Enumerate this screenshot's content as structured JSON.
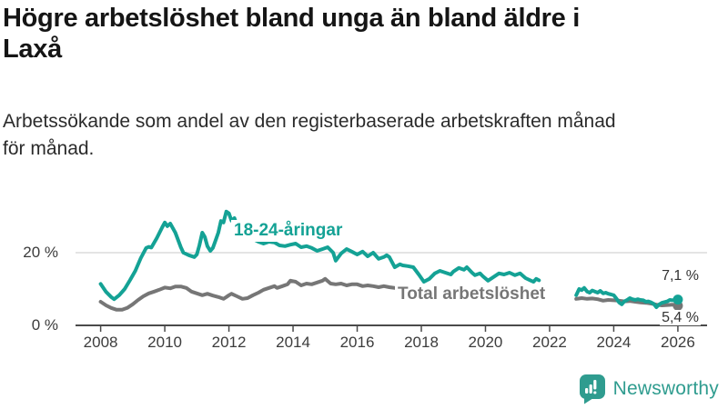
{
  "header": {
    "title_lines": [
      "Högre arbetslöshet bland unga än bland äldre i",
      "Laxå"
    ],
    "subtitle_lines": [
      "Arbetssökande som andel av den registerbaserade arbetskraften månad",
      "för månad."
    ]
  },
  "chart_data": {
    "type": "line",
    "unit": "%",
    "y_axis": {
      "tick_values": [
        20,
        0
      ],
      "tick_labels": [
        "20 %",
        "0 %"
      ],
      "gridlines": [
        20
      ],
      "range": [
        0,
        34
      ]
    },
    "x_axis": {
      "tick_values": [
        2008,
        2010,
        2012,
        2014,
        2016,
        2018,
        2020,
        2022,
        2024,
        2026
      ],
      "tick_labels": [
        "2008",
        "2010",
        "2012",
        "2014",
        "2016",
        "2018",
        "2020",
        "2022",
        "2024",
        "2026"
      ]
    },
    "data_gap": {
      "from": 2021.67,
      "to": 2022.83
    },
    "series": [
      {
        "name": "Total arbetslöshet",
        "color": "#767676",
        "end_value": 5.4,
        "end_value_label": "5,4 %",
        "segments": [
          [
            [
              2008.0,
              6.5
            ],
            [
              2008.17,
              5.5
            ],
            [
              2008.33,
              4.8
            ],
            [
              2008.5,
              4.3
            ],
            [
              2008.67,
              4.3
            ],
            [
              2008.83,
              4.8
            ],
            [
              2009.0,
              5.8
            ],
            [
              2009.17,
              7.0
            ],
            [
              2009.33,
              8.0
            ],
            [
              2009.5,
              8.8
            ],
            [
              2009.67,
              9.3
            ],
            [
              2009.83,
              9.8
            ],
            [
              2010.0,
              10.4
            ],
            [
              2010.17,
              10.2
            ],
            [
              2010.33,
              10.7
            ],
            [
              2010.5,
              10.7
            ],
            [
              2010.67,
              10.3
            ],
            [
              2010.83,
              9.3
            ],
            [
              2011.0,
              8.8
            ],
            [
              2011.17,
              8.3
            ],
            [
              2011.33,
              8.7
            ],
            [
              2011.5,
              8.2
            ],
            [
              2011.67,
              7.8
            ],
            [
              2011.83,
              7.3
            ],
            [
              2011.92,
              7.8
            ],
            [
              2012.0,
              8.3
            ],
            [
              2012.08,
              8.7
            ],
            [
              2012.25,
              8.0
            ],
            [
              2012.42,
              7.3
            ],
            [
              2012.58,
              7.5
            ],
            [
              2012.75,
              8.3
            ],
            [
              2012.92,
              9.0
            ],
            [
              2013.08,
              9.8
            ],
            [
              2013.25,
              10.3
            ],
            [
              2013.42,
              10.8
            ],
            [
              2013.5,
              10.3
            ],
            [
              2013.67,
              10.8
            ],
            [
              2013.83,
              11.3
            ],
            [
              2013.92,
              12.3
            ],
            [
              2014.08,
              12.0
            ],
            [
              2014.25,
              11.0
            ],
            [
              2014.42,
              11.5
            ],
            [
              2014.58,
              11.3
            ],
            [
              2014.75,
              11.8
            ],
            [
              2014.92,
              12.3
            ],
            [
              2015.0,
              12.8
            ],
            [
              2015.17,
              11.5
            ],
            [
              2015.33,
              11.3
            ],
            [
              2015.5,
              11.5
            ],
            [
              2015.67,
              11.0
            ],
            [
              2015.83,
              11.3
            ],
            [
              2016.0,
              11.3
            ],
            [
              2016.17,
              10.8
            ],
            [
              2016.33,
              11.0
            ],
            [
              2016.5,
              10.8
            ],
            [
              2016.67,
              10.5
            ],
            [
              2016.83,
              10.8
            ],
            [
              2017.0,
              10.5
            ],
            [
              2017.25,
              10.2
            ],
            [
              2017.5,
              10.0
            ],
            [
              2017.75,
              9.8
            ],
            [
              2018.0,
              9.5
            ],
            [
              2018.25,
              9.2
            ],
            [
              2018.5,
              9.0
            ],
            [
              2018.75,
              8.8
            ],
            [
              2019.0,
              8.8
            ],
            [
              2019.25,
              8.6
            ],
            [
              2019.5,
              8.5
            ],
            [
              2019.75,
              8.4
            ],
            [
              2020.0,
              8.5
            ],
            [
              2020.25,
              9.0
            ],
            [
              2020.5,
              9.2
            ],
            [
              2020.75,
              9.0
            ],
            [
              2021.0,
              8.8
            ],
            [
              2021.25,
              8.6
            ],
            [
              2021.5,
              8.4
            ],
            [
              2021.67,
              8.3
            ]
          ],
          [
            [
              2022.83,
              7.3
            ],
            [
              2023.0,
              7.5
            ],
            [
              2023.17,
              7.3
            ],
            [
              2023.33,
              7.4
            ],
            [
              2023.5,
              7.2
            ],
            [
              2023.67,
              6.8
            ],
            [
              2023.83,
              7.0
            ],
            [
              2024.0,
              6.9
            ],
            [
              2024.17,
              6.8
            ],
            [
              2024.33,
              6.6
            ],
            [
              2024.5,
              6.7
            ],
            [
              2024.67,
              6.5
            ],
            [
              2024.83,
              6.3
            ],
            [
              2025.0,
              6.2
            ],
            [
              2025.17,
              6.0
            ],
            [
              2025.33,
              5.7
            ],
            [
              2025.5,
              5.5
            ],
            [
              2025.67,
              5.6
            ],
            [
              2025.83,
              5.7
            ],
            [
              2026.0,
              5.4
            ]
          ]
        ]
      },
      {
        "name": "18-24-åringar",
        "color": "#14A295",
        "end_value": 7.1,
        "end_value_label": "7,1 %",
        "segments": [
          [
            [
              2008.0,
              11.4
            ],
            [
              2008.17,
              9.2
            ],
            [
              2008.33,
              7.8
            ],
            [
              2008.42,
              7.2
            ],
            [
              2008.58,
              8.3
            ],
            [
              2008.75,
              10.0
            ],
            [
              2008.92,
              12.5
            ],
            [
              2009.08,
              15.0
            ],
            [
              2009.25,
              18.5
            ],
            [
              2009.42,
              21.3
            ],
            [
              2009.5,
              21.6
            ],
            [
              2009.58,
              21.4
            ],
            [
              2009.75,
              24.0
            ],
            [
              2009.92,
              27.0
            ],
            [
              2010.0,
              28.3
            ],
            [
              2010.08,
              27.3
            ],
            [
              2010.17,
              28.0
            ],
            [
              2010.33,
              25.5
            ],
            [
              2010.5,
              21.5
            ],
            [
              2010.58,
              20.0
            ],
            [
              2010.75,
              19.3
            ],
            [
              2010.92,
              18.8
            ],
            [
              2011.0,
              19.5
            ],
            [
              2011.08,
              22.0
            ],
            [
              2011.17,
              25.5
            ],
            [
              2011.25,
              24.3
            ],
            [
              2011.33,
              21.8
            ],
            [
              2011.42,
              20.5
            ],
            [
              2011.5,
              21.3
            ],
            [
              2011.58,
              23.3
            ],
            [
              2011.67,
              25.5
            ],
            [
              2011.75,
              28.7
            ],
            [
              2011.83,
              28.3
            ],
            [
              2011.92,
              31.3
            ],
            [
              2012.0,
              30.8
            ],
            [
              2012.08,
              28.8
            ],
            [
              2012.17,
              29.5
            ],
            [
              2012.25,
              27.5
            ],
            [
              2012.42,
              25.5
            ],
            [
              2012.58,
              24.3
            ],
            [
              2012.75,
              23.8
            ],
            [
              2012.92,
              23.0
            ],
            [
              2013.08,
              22.5
            ],
            [
              2013.25,
              23.0
            ],
            [
              2013.42,
              22.8
            ],
            [
              2013.58,
              22.0
            ],
            [
              2013.75,
              21.8
            ],
            [
              2013.92,
              22.2
            ],
            [
              2014.08,
              22.5
            ],
            [
              2014.25,
              21.5
            ],
            [
              2014.42,
              21.8
            ],
            [
              2014.58,
              21.3
            ],
            [
              2014.75,
              20.5
            ],
            [
              2014.92,
              21.0
            ],
            [
              2015.08,
              21.5
            ],
            [
              2015.25,
              20.0
            ],
            [
              2015.33,
              17.8
            ],
            [
              2015.5,
              19.8
            ],
            [
              2015.67,
              21.0
            ],
            [
              2015.83,
              20.3
            ],
            [
              2016.0,
              19.5
            ],
            [
              2016.17,
              20.3
            ],
            [
              2016.33,
              19.0
            ],
            [
              2016.5,
              20.0
            ],
            [
              2016.67,
              18.3
            ],
            [
              2016.83,
              18.8
            ],
            [
              2016.92,
              19.3
            ],
            [
              2017.0,
              18.8
            ],
            [
              2017.17,
              16.0
            ],
            [
              2017.33,
              16.8
            ],
            [
              2017.42,
              16.5
            ],
            [
              2017.58,
              16.3
            ],
            [
              2017.75,
              16.0
            ],
            [
              2017.92,
              14.0
            ],
            [
              2018.08,
              12.0
            ],
            [
              2018.25,
              12.8
            ],
            [
              2018.42,
              14.3
            ],
            [
              2018.58,
              15.0
            ],
            [
              2018.75,
              14.5
            ],
            [
              2018.92,
              14.0
            ],
            [
              2019.0,
              14.8
            ],
            [
              2019.17,
              15.8
            ],
            [
              2019.33,
              15.3
            ],
            [
              2019.42,
              16.0
            ],
            [
              2019.58,
              14.5
            ],
            [
              2019.67,
              13.8
            ],
            [
              2019.83,
              14.3
            ],
            [
              2019.92,
              13.5
            ],
            [
              2020.08,
              12.3
            ],
            [
              2020.25,
              13.3
            ],
            [
              2020.42,
              14.3
            ],
            [
              2020.58,
              14.0
            ],
            [
              2020.75,
              14.5
            ],
            [
              2020.92,
              13.8
            ],
            [
              2021.08,
              14.3
            ],
            [
              2021.25,
              13.0
            ],
            [
              2021.42,
              12.3
            ],
            [
              2021.5,
              12.0
            ],
            [
              2021.58,
              12.8
            ],
            [
              2021.67,
              12.4
            ]
          ],
          [
            [
              2022.83,
              8.3
            ],
            [
              2022.92,
              10.0
            ],
            [
              2023.0,
              9.7
            ],
            [
              2023.08,
              10.3
            ],
            [
              2023.17,
              9.3
            ],
            [
              2023.25,
              9.0
            ],
            [
              2023.33,
              9.6
            ],
            [
              2023.5,
              9.0
            ],
            [
              2023.58,
              9.5
            ],
            [
              2023.67,
              8.8
            ],
            [
              2023.75,
              9.0
            ],
            [
              2023.83,
              8.7
            ],
            [
              2023.92,
              8.5
            ],
            [
              2024.0,
              8.3
            ],
            [
              2024.08,
              7.4
            ],
            [
              2024.17,
              6.3
            ],
            [
              2024.25,
              5.8
            ],
            [
              2024.33,
              6.6
            ],
            [
              2024.42,
              7.0
            ],
            [
              2024.5,
              7.5
            ],
            [
              2024.58,
              7.2
            ],
            [
              2024.67,
              7.0
            ],
            [
              2024.75,
              7.2
            ],
            [
              2024.83,
              7.0
            ],
            [
              2024.92,
              6.9
            ],
            [
              2025.0,
              6.5
            ],
            [
              2025.08,
              6.6
            ],
            [
              2025.17,
              6.3
            ],
            [
              2025.25,
              5.9
            ],
            [
              2025.33,
              5.0
            ],
            [
              2025.42,
              5.8
            ],
            [
              2025.5,
              6.2
            ],
            [
              2025.58,
              6.4
            ],
            [
              2025.67,
              6.6
            ],
            [
              2025.75,
              7.0
            ],
            [
              2025.83,
              6.9
            ],
            [
              2025.92,
              7.0
            ],
            [
              2026.0,
              7.1
            ]
          ]
        ]
      }
    ],
    "legend_position": "inline-labels",
    "grid": "horizontal-only"
  },
  "style": {
    "accent_teal": "#14A295",
    "line_gray": "#767676",
    "axis_color": "#4a4a4a",
    "gridline_color": "#dcdcdc",
    "text_color": "#3c3c3c"
  },
  "branding": {
    "logo_text": "Newsworthy",
    "logo_color": "#2F9C8F",
    "logo_icon": "bar-chart-speech-bubble-icon"
  }
}
